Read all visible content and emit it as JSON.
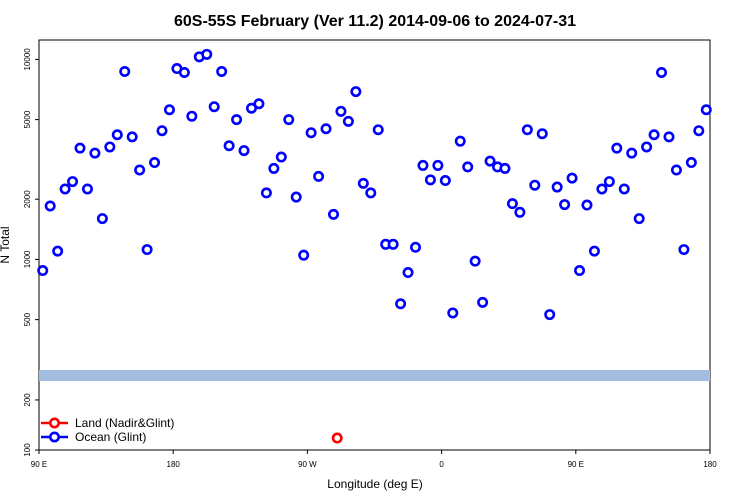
{
  "chart_data": {
    "type": "scatter",
    "title": "60S-55S February (Ver 11.2)   2014-09-06 to 2024-07-31",
    "xlabel": "Longitude (deg E)",
    "ylabel": "N Total",
    "x_ticks": [
      "90 E",
      "180",
      "90 W",
      "0",
      "90 E",
      "180"
    ],
    "y_ticks_upper": [
      "500",
      "1000",
      "2000",
      "5000",
      "10000"
    ],
    "y_ticks_lower": [
      "100",
      "200"
    ],
    "y_scale": "log",
    "y_upper_range": [
      280,
      12500
    ],
    "y_lower_range": [
      100,
      260
    ],
    "x_range_deg": [
      90,
      450
    ],
    "band_color": "#a3bde0",
    "series": [
      {
        "name": "Land (Nadir&Glint)",
        "color": "#ff0000",
        "x": [
          250
        ],
        "y": [
          118
        ]
      },
      {
        "name": "Ocean (Glint)",
        "color": "#0000ff",
        "x": [
          92,
          96,
          100,
          104,
          108,
          112,
          116,
          120,
          124,
          128,
          132,
          136,
          140,
          144,
          148,
          152,
          156,
          160,
          164,
          168,
          172,
          176,
          180,
          184,
          188,
          192,
          196,
          200,
          204,
          208,
          212,
          216,
          220,
          224,
          228,
          232,
          236,
          240,
          244,
          248,
          252,
          256,
          260,
          264,
          268,
          272,
          276,
          280,
          284,
          288,
          292,
          296,
          300,
          304,
          308,
          312,
          316,
          320,
          324,
          328,
          332,
          336,
          340,
          344,
          348,
          352,
          356,
          360,
          364,
          368,
          372,
          376,
          380,
          384,
          388,
          392,
          396,
          400,
          404,
          408,
          412,
          416,
          420,
          424,
          428,
          432,
          436,
          440,
          444,
          448
        ],
        "y": [
          880,
          1850,
          1100,
          2250,
          2450,
          3600,
          2250,
          3400,
          1600,
          3650,
          4200,
          8700,
          4100,
          2800,
          1120,
          3050,
          4400,
          5600,
          9000,
          8600,
          5200,
          10300,
          10600,
          5800,
          8700,
          3700,
          5000,
          3500,
          5700,
          6000,
          2150,
          2850,
          3250,
          5000,
          2050,
          1050,
          4300,
          2600,
          4500,
          1680,
          5500,
          4900,
          6900,
          2400,
          2150,
          4450,
          1190,
          1190,
          600,
          860,
          1150,
          2950,
          2500,
          2950,
          2480,
          540,
          3900,
          2900,
          980,
          610,
          3100,
          2900,
          2850,
          1900,
          1720,
          4450,
          2350,
          4250,
          530,
          2300,
          1880,
          2550,
          880,
          1870,
          1100,
          2250,
          2450,
          3600,
          2250,
          3400,
          1600,
          3650,
          4200,
          8600,
          4100,
          2800,
          1120,
          3050,
          4400,
          5600
        ]
      }
    ],
    "legend_position": "bottom-left"
  }
}
